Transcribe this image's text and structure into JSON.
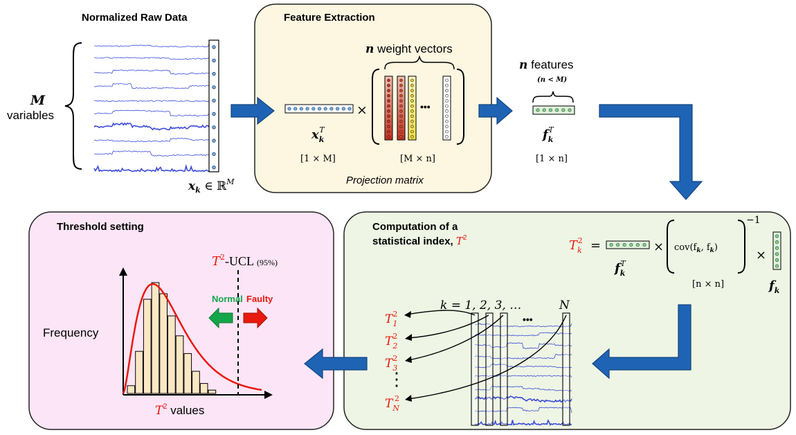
{
  "raw": {
    "title": "Normalized Raw Data",
    "M": "M",
    "variables": "variables",
    "xk_base": "x",
    "xk_sub": "k",
    "xk_rest": " ∈ ℝ",
    "xk_sup": "M"
  },
  "feature": {
    "title": "Feature Extraction",
    "n": "n",
    "weight_vectors": " weight vectors",
    "n_features": " features",
    "n_less_m": "(n < M)",
    "times": "×",
    "dots": "•••",
    "xkt_base": "x",
    "xkt_sub": "k",
    "xkt_sup": "T",
    "dim_x": "[1 × M]",
    "dim_w": "[M × n]",
    "fkt_base": "f",
    "fkt_sub": "k",
    "fkt_sup": "T",
    "dim_f": "[1 × n]",
    "projection": "Projection matrix"
  },
  "statistic": {
    "title_line1": "Computation of a",
    "title_line2": "statistical index, ",
    "title_t": "T",
    "title_sup": "2",
    "t_base": "T",
    "t_sub": "k",
    "t_sup": "2",
    "equals": "=",
    "times": "×",
    "cov": "cov(f",
    "cov_mid": ", f",
    "cov_end": ")",
    "cov_k1": "k",
    "cov_k2": "k",
    "inv": "−1",
    "dim_cov": "[n × n]",
    "fkt_base": "f",
    "fkt_sub": "k",
    "fkt_sup": "T",
    "fk_base": "f",
    "fk_sub": "k",
    "k_seq": "k = 1, 2, 3, …",
    "N": "N",
    "t_items": [
      {
        "base": "T",
        "sub": "1",
        "sup": "2"
      },
      {
        "base": "T",
        "sub": "2",
        "sup": "2"
      },
      {
        "base": "T",
        "sub": "3",
        "sup": "2"
      },
      {
        "base": "T",
        "sub": "N",
        "sup": "2"
      }
    ],
    "dots": "•••",
    "vdots": "⋮"
  },
  "threshold": {
    "title": "Threshold setting",
    "ucl_t": "T",
    "ucl_sup": "2",
    "ucl_rest": "-UCL",
    "ucl_conf": "(95%)",
    "normal": "Normal",
    "faulty": "Faulty",
    "frequency": "Frequency",
    "xaxis_t": "T",
    "xaxis_sup": "2",
    "xaxis_rest": " values"
  },
  "colors": {
    "panel_feature": "#fdf6e0",
    "panel_statistic": "#eef5e4",
    "panel_threshold": "#fbe5f6",
    "arrow_blue": "#1f64b4",
    "signal": "#3b4bd8",
    "red": "#e8190f",
    "normal_green": "#14a64a",
    "faulty_red": "#e8190f",
    "bar_fill": "#fbe7c4"
  }
}
